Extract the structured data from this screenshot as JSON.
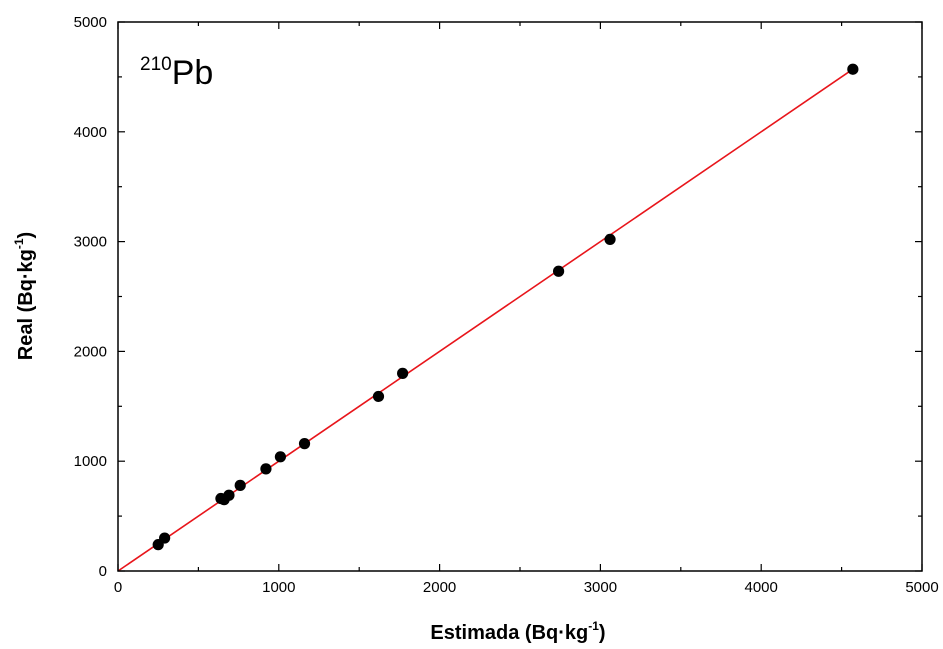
{
  "chart_data": {
    "type": "scatter",
    "title": "",
    "annotation": {
      "superscript": "210",
      "text": "Pb"
    },
    "xlabel": {
      "main": "Estimada (Bq·kg",
      "superscript": "-1",
      "tail": ")"
    },
    "ylabel": {
      "main": "Real (Bq·kg",
      "superscript": "-1",
      "tail": ")"
    },
    "xlim": [
      0,
      5000
    ],
    "ylim": [
      0,
      5000
    ],
    "x_ticks": [
      "0",
      "1000",
      "2000",
      "3000",
      "4000",
      "5000"
    ],
    "y_ticks": [
      "0",
      "1000",
      "2000",
      "3000",
      "4000",
      "5000"
    ],
    "grid": false,
    "legend": "none",
    "series": [
      {
        "kind": "points",
        "color": "#000000",
        "x": [
          250,
          290,
          640,
          660,
          690,
          760,
          920,
          1010,
          1160,
          1620,
          1770,
          2740,
          3060,
          4570
        ],
        "y": [
          240,
          300,
          660,
          650,
          690,
          780,
          930,
          1040,
          1160,
          1590,
          1800,
          2730,
          3020,
          4570
        ]
      },
      {
        "kind": "fit-line",
        "color": "#e8151b",
        "x": [
          0,
          4570
        ],
        "y": [
          0,
          4570
        ]
      }
    ]
  }
}
